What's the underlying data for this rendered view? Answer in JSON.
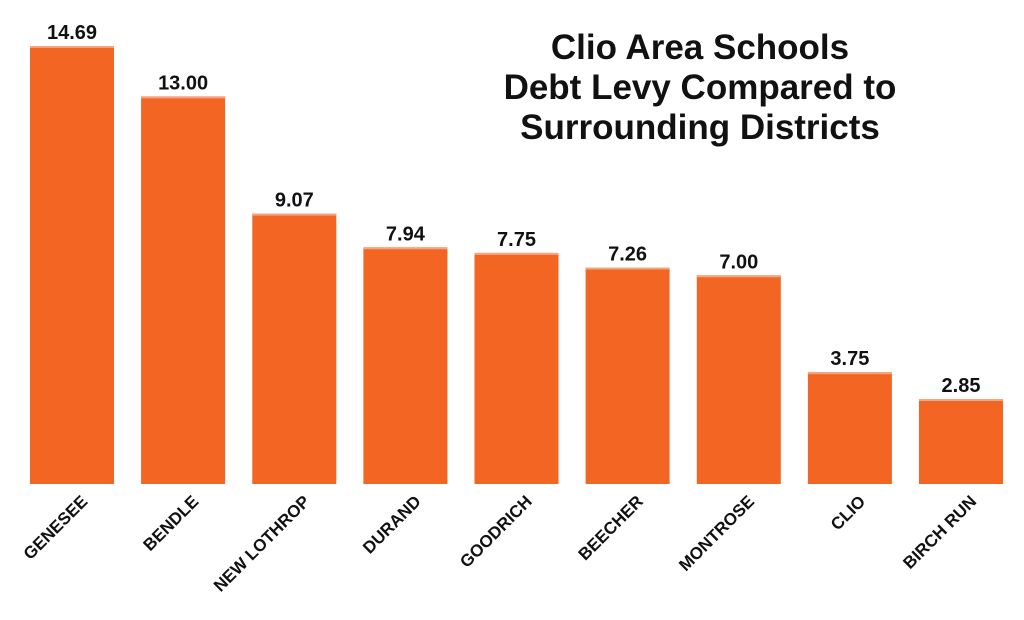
{
  "chart_data": {
    "type": "bar",
    "title_lines": [
      "Clio Area Schools",
      "Debt Levy Compared to",
      "Surrounding Districts"
    ],
    "xlabel": "",
    "ylabel": "",
    "categories": [
      "GENESEE",
      "BENDLE",
      "NEW LOTHROP",
      "DURAND",
      "GOODRICH",
      "BEECHER",
      "MONTROSE",
      "CLIO",
      "BIRCH RUN"
    ],
    "values": [
      14.69,
      13.0,
      9.07,
      7.94,
      7.75,
      7.26,
      7.0,
      3.75,
      2.85
    ],
    "value_labels": [
      "14.69",
      "13.00",
      "9.07",
      "7.94",
      "7.75",
      "7.26",
      "7.00",
      "3.75",
      "2.85"
    ],
    "ylim": [
      0,
      14.69
    ],
    "grid": false,
    "legend": "none",
    "colors": {
      "bar": "#f26522",
      "bar_highlight": "#f7a57e",
      "label": "#111111"
    }
  }
}
